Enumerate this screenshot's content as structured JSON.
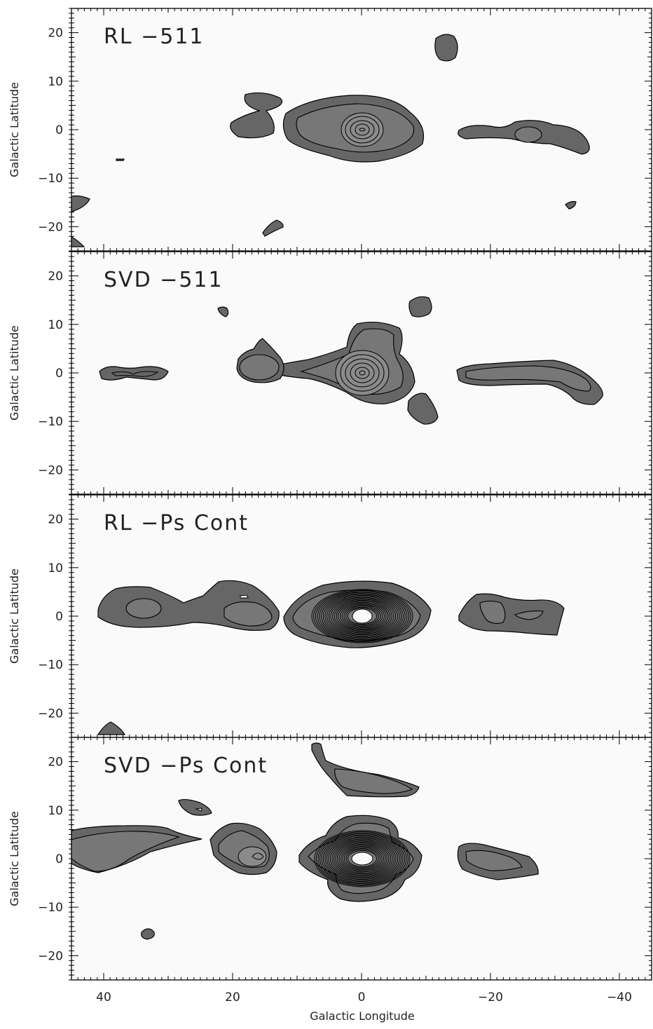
{
  "chart_data": [
    {
      "type": "contour",
      "panel_label": "RL −511",
      "ylabel": "Galactic Latitude",
      "xlim": [
        45,
        -45
      ],
      "ylim": [
        -25,
        25
      ],
      "yticks": [
        20,
        10,
        0,
        -10,
        -20
      ],
      "peak": {
        "l": 0,
        "b": 0
      }
    },
    {
      "type": "contour",
      "panel_label": "SVD −511",
      "ylabel": "Galactic Latitude",
      "xlim": [
        45,
        -45
      ],
      "ylim": [
        -25,
        25
      ],
      "yticks": [
        20,
        10,
        0,
        -10,
        -20
      ],
      "peak": {
        "l": 0,
        "b": 0
      }
    },
    {
      "type": "contour",
      "panel_label": "RL −Ps Cont",
      "ylabel": "Galactic Latitude",
      "xlim": [
        45,
        -45
      ],
      "ylim": [
        -25,
        25
      ],
      "yticks": [
        20,
        10,
        0,
        -10,
        -20
      ],
      "peak": {
        "l": 0,
        "b": 0
      }
    },
    {
      "type": "contour",
      "panel_label": "SVD −Ps Cont",
      "ylabel": "Galactic Latitude",
      "xlabel": "Galactic Longitude",
      "xlim": [
        45,
        -45
      ],
      "ylim": [
        -25,
        25
      ],
      "xticks": [
        40,
        20,
        0,
        -20,
        -40
      ],
      "yticks": [
        20,
        10,
        0,
        -10,
        -20
      ],
      "peak": {
        "l": 0,
        "b": 0
      }
    }
  ],
  "tick_labels": {
    "y": [
      "20",
      "10",
      "0",
      "−10",
      "−20"
    ],
    "x": [
      "40",
      "20",
      "0",
      "−20",
      "−40"
    ]
  }
}
